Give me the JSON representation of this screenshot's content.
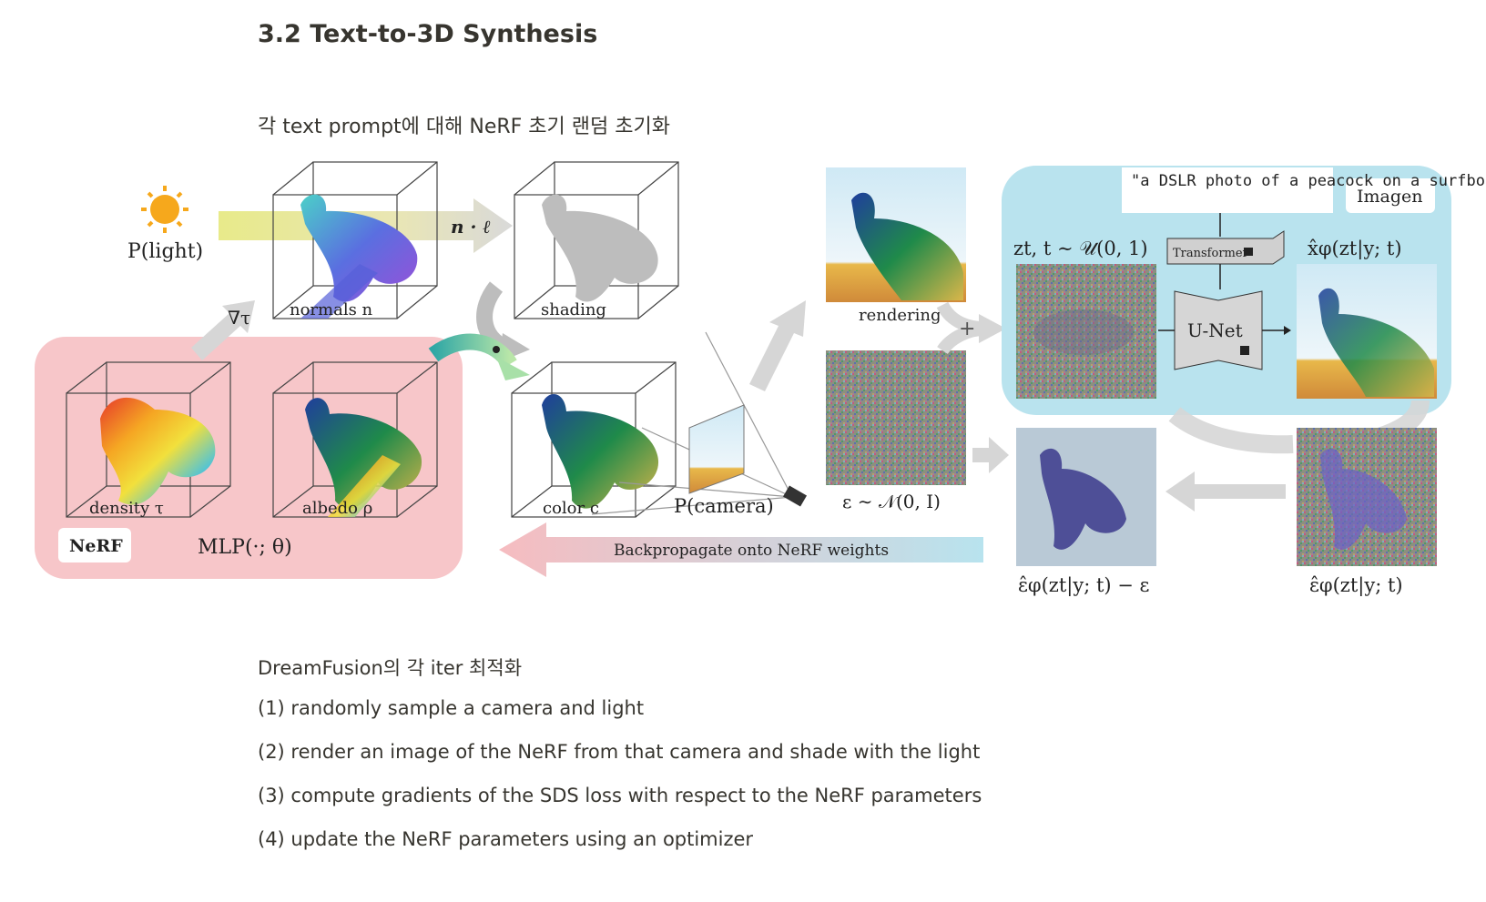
{
  "page": {
    "heading": "3.2 Text-to-3D Synthesis",
    "caption": "각 text prompt에 대해 NeRF 초기 랜덤 초기화"
  },
  "figure": {
    "light_label": "P(light)",
    "nl_label": "n · ℓ",
    "nabla_label": "∇τ",
    "normals_label": "normals n",
    "shading_label": "shading",
    "density_label": "density τ",
    "albedo_label": "albedo ρ",
    "color_label": "color c",
    "camera_label": "P(camera)",
    "nerf_badge": "NeRF",
    "mlp_label": "MLP(·; θ)",
    "rendering_label": "rendering",
    "noise_label": "ε ∼ 𝒩(0, I)",
    "plus_label": "+",
    "prompt_text": "\"a DSLR photo of a peacock on a surfboard\"",
    "imagen_badge": "Imagen",
    "zt_label": "zt, t ∼ 𝒰(0, 1)",
    "transformer_label": "Transformer",
    "unet_label": "U-Net",
    "xhat_label": "x̂φ(zt|y; t)",
    "backprop_label": "Backpropagate onto NeRF weights",
    "eps_diff_label": "ε̂φ(zt|y; t) − ε",
    "eps_hat_label": "ε̂φ(zt|y; t)"
  },
  "steps": {
    "intro": "DreamFusion의 각 iter 최적화",
    "items": [
      "(1) randomly sample a camera and light",
      "(2) render an image of the NeRF from that camera and shade with the light",
      "(3) compute gradients of the SDS loss with respect to the NeRF parameters",
      "(4) update the NeRF parameters using an optimizer"
    ]
  },
  "colors": {
    "nerf_panel": "#f7c6c9",
    "imagen_panel": "#b9e3ee",
    "arrow_gray": "#d6d6d6",
    "light_beam": "#e8ea9a",
    "sun": "#f6a81c"
  }
}
